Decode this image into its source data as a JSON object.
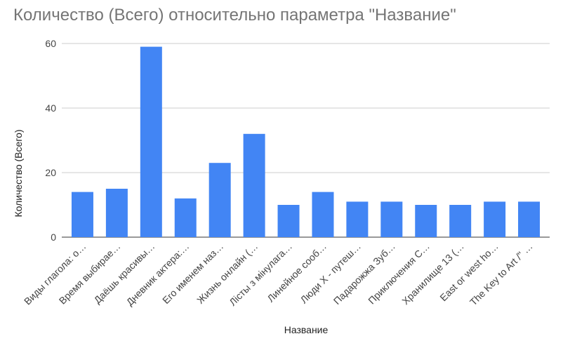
{
  "chart_data": {
    "type": "bar",
    "title": "Количество (Всего) относительно параметра \"Название\"",
    "xlabel": "Название",
    "ylabel": "Количество (Всего)",
    "ylim": [
      0,
      60
    ],
    "yticks": [
      0,
      20,
      40,
      60
    ],
    "grid": true,
    "legend": "none",
    "color": "#4285f4",
    "categories": [
      "Виды глагола: о…",
      "Время выбирае…",
      "Даёшь красивы…",
      "Дневник актера:…",
      "Его именем наз…",
      "Жизнь онлайн (…",
      "Лісты з мінулага…",
      "Линейное сооб…",
      "Люди X - путеш…",
      "Падарожжа Зуб…",
      "Приключения С…",
      "Хранилище 13 (…",
      "East or west ho…",
      "The Key to Art /\" …"
    ],
    "values": [
      14,
      15,
      59,
      12,
      23,
      32,
      10,
      14,
      11,
      11,
      10,
      10,
      11,
      11
    ]
  }
}
